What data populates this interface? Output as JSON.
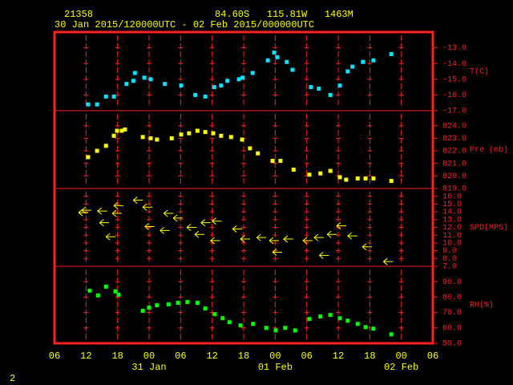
{
  "header": {
    "station": "21358",
    "location": "84.60S   115.81W   1463M",
    "period": "30 Jan 2015/120000UTC - 02 Feb 2015/000000UTC"
  },
  "footer": "2",
  "x_axis": {
    "xlim": [
      0,
      72
    ],
    "xticks": [
      {
        "value": 0,
        "label": "06"
      },
      {
        "value": 6,
        "label": "12"
      },
      {
        "value": 12,
        "label": "18"
      },
      {
        "value": 18,
        "label": "00"
      },
      {
        "value": 24,
        "label": "06"
      },
      {
        "value": 30,
        "label": "12"
      },
      {
        "value": 36,
        "label": "18"
      },
      {
        "value": 42,
        "label": "00"
      },
      {
        "value": 48,
        "label": "06"
      },
      {
        "value": 54,
        "label": "12"
      },
      {
        "value": 60,
        "label": "18"
      },
      {
        "value": 66,
        "label": "00"
      },
      {
        "value": 72,
        "label": "06"
      }
    ],
    "date_labels": [
      {
        "value": 18,
        "label": "31 Jan"
      },
      {
        "value": 42,
        "label": "01 Feb"
      },
      {
        "value": 66,
        "label": "02 Feb"
      }
    ]
  },
  "chart_data": [
    {
      "type": "scatter",
      "ylabel": "T(C)",
      "color": "#00e5ff",
      "ylim": [
        -17,
        -12
      ],
      "yticks": [
        {
          "value": -13,
          "label": "-13.0"
        },
        {
          "value": -14,
          "label": "-14.0"
        },
        {
          "value": -15,
          "label": "-15.0"
        },
        {
          "value": -16,
          "label": "-16.0"
        },
        {
          "value": -17,
          "label": "-17.0"
        }
      ],
      "x": [
        6.4,
        8.1,
        9.8,
        11.3,
        13.7,
        15.0,
        15.3,
        17.1,
        18.3,
        21.0,
        24.1,
        26.8,
        28.7,
        30.4,
        31.7,
        32.9,
        35.1,
        35.8,
        37.7,
        40.6,
        41.8,
        42.4,
        44.2,
        45.3,
        48.8,
        50.3,
        52.5,
        54.3,
        55.8,
        56.7,
        58.7,
        60.7,
        64.1
      ],
      "values": [
        -16.6,
        -16.6,
        -16.1,
        -16.1,
        -15.3,
        -15.1,
        -14.6,
        -14.9,
        -15.0,
        -15.3,
        -15.4,
        -16.0,
        -16.1,
        -15.5,
        -15.4,
        -15.1,
        -15.0,
        -14.9,
        -14.6,
        -13.8,
        -13.3,
        -13.6,
        -13.9,
        -14.4,
        -15.5,
        -15.6,
        -16.0,
        -15.4,
        -14.5,
        -14.2,
        -13.9,
        -13.8,
        -13.4
      ]
    },
    {
      "type": "scatter",
      "ylabel": "Pre (mb)",
      "color": "#ffff00",
      "ylim": [
        819,
        825.2
      ],
      "yticks": [
        {
          "value": 824,
          "label": "824.0"
        },
        {
          "value": 823,
          "label": "823.0"
        },
        {
          "value": 822,
          "label": "822.0"
        },
        {
          "value": 821,
          "label": "821.0"
        },
        {
          "value": 820,
          "label": "820.0"
        },
        {
          "value": 819,
          "label": "819.0"
        }
      ],
      "x": [
        6.4,
        8.1,
        9.8,
        11.3,
        11.9,
        12.8,
        13.4,
        16.8,
        18.3,
        19.5,
        22.3,
        24.1,
        25.6,
        27.2,
        28.7,
        30.2,
        31.7,
        33.6,
        35.7,
        37.2,
        38.7,
        41.5,
        43.0,
        45.5,
        48.5,
        50.6,
        52.5,
        54.3,
        55.5,
        57.7,
        59.2,
        60.7,
        64.1
      ],
      "values": [
        821.5,
        822.0,
        822.4,
        823.2,
        823.6,
        823.6,
        823.7,
        823.1,
        823.0,
        822.9,
        823.0,
        823.3,
        823.4,
        823.6,
        823.5,
        823.4,
        823.2,
        823.1,
        822.9,
        822.2,
        821.8,
        821.2,
        821.2,
        820.5,
        820.1,
        820.2,
        820.4,
        819.9,
        819.7,
        819.8,
        819.8,
        819.8,
        819.6
      ]
    },
    {
      "type": "arrow",
      "ylabel": "SPD(MPS)",
      "color": "#ffff00",
      "ylim": [
        7,
        17
      ],
      "yticks": [
        {
          "value": 16,
          "label": "16.0"
        },
        {
          "value": 15,
          "label": "15.0"
        },
        {
          "value": 14,
          "label": "14.0"
        },
        {
          "value": 13,
          "label": "13.0"
        },
        {
          "value": 12,
          "label": "12.0"
        },
        {
          "value": 11,
          "label": "11.0"
        },
        {
          "value": 10,
          "label": "10.0"
        },
        {
          "value": 9,
          "label": "9.0"
        },
        {
          "value": 8,
          "label": "8.0"
        },
        {
          "value": 7,
          "label": "7.0"
        }
      ],
      "x": [
        5.5,
        6.1,
        9.1,
        9.5,
        10.7,
        11.9,
        12.2,
        15.9,
        17.7,
        18.1,
        21.0,
        21.7,
        23.5,
        26.1,
        27.6,
        28.8,
        30.6,
        30.9,
        34.8,
        36.3,
        39.4,
        41.8,
        42.4,
        44.5,
        48.2,
        50.3,
        51.3,
        52.8,
        54.6,
        56.7,
        59.5,
        63.5
      ],
      "values": [
        13.9,
        14.2,
        14.1,
        12.6,
        10.8,
        13.8,
        14.8,
        15.5,
        14.6,
        12.1,
        11.6,
        13.8,
        13.2,
        12.0,
        11.1,
        12.6,
        10.3,
        12.8,
        11.8,
        10.5,
        10.7,
        10.3,
        8.8,
        10.5,
        10.3,
        10.7,
        8.4,
        11.1,
        12.2,
        10.9,
        9.5,
        7.6
      ]
    },
    {
      "type": "scatter",
      "ylabel": "RH(%)",
      "color": "#00ff00",
      "ylim": [
        50,
        100
      ],
      "yticks": [
        {
          "value": 90,
          "label": "90.0"
        },
        {
          "value": 80,
          "label": "80.0"
        },
        {
          "value": 70,
          "label": "70.0"
        },
        {
          "value": 60,
          "label": "60.0"
        },
        {
          "value": 50,
          "label": "50.0"
        }
      ],
      "x": [
        6.7,
        8.3,
        9.8,
        11.6,
        12.2,
        16.8,
        18.0,
        19.5,
        21.7,
        23.5,
        25.3,
        27.2,
        28.7,
        30.5,
        32.0,
        33.3,
        35.4,
        37.8,
        40.3,
        42.1,
        43.9,
        45.8,
        48.5,
        50.6,
        52.5,
        54.3,
        55.8,
        57.7,
        59.2,
        60.7,
        64.1
      ],
      "values": [
        84.2,
        81.1,
        86.8,
        83.7,
        81.6,
        71.1,
        73.2,
        74.7,
        75.3,
        76.3,
        76.8,
        76.3,
        72.6,
        68.9,
        66.3,
        63.7,
        61.6,
        62.6,
        60.0,
        58.4,
        60.0,
        58.4,
        65.8,
        67.4,
        68.4,
        66.3,
        64.7,
        62.6,
        60.5,
        59.5,
        55.8
      ]
    }
  ]
}
